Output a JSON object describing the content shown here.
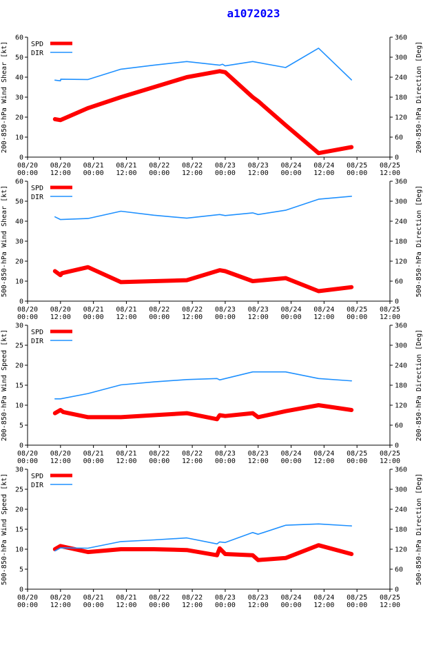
{
  "title": "a1072023",
  "colors": {
    "spd": "#ff0000",
    "dir": "#1e90ff",
    "axis": "#000000",
    "title": "#0000ff"
  },
  "x_tick_labels": [
    [
      "08/20",
      "00:00"
    ],
    [
      "08/20",
      "12:00"
    ],
    [
      "08/21",
      "00:00"
    ],
    [
      "08/21",
      "12:00"
    ],
    [
      "08/22",
      "00:00"
    ],
    [
      "08/22",
      "12:00"
    ],
    [
      "08/23",
      "00:00"
    ],
    [
      "08/23",
      "12:00"
    ],
    [
      "08/24",
      "00:00"
    ],
    [
      "08/24",
      "12:00"
    ],
    [
      "08/25",
      "00:00"
    ],
    [
      "08/25",
      "12:00"
    ]
  ],
  "chart_data": [
    {
      "type": "line",
      "ylabel": "200-850-hPa Wind Shear [kt]",
      "y2label": "200-850-hPa Direction [Deg]",
      "xlim": [
        0,
        132
      ],
      "ylim": [
        0,
        60
      ],
      "y2lim": [
        0,
        360
      ],
      "yticks": [
        "0",
        "10",
        "20",
        "30",
        "40",
        "50",
        "60"
      ],
      "y2ticks": [
        "0",
        "60",
        "120",
        "180",
        "240",
        "300",
        "360"
      ],
      "legend": [
        "SPD",
        "DIR"
      ],
      "series": [
        {
          "name": "SPD",
          "axis": "left",
          "x": [
            10,
            12,
            22,
            34,
            46,
            58,
            70,
            72,
            82,
            84,
            94,
            106,
            118
          ],
          "y": [
            19,
            18.5,
            24.5,
            30,
            35,
            40,
            43,
            42.5,
            30,
            28,
            16,
            2,
            5
          ]
        },
        {
          "name": "DIR",
          "axis": "right",
          "x": [
            10,
            12,
            12.1,
            22,
            34,
            46,
            58,
            70,
            71,
            72,
            82,
            94,
            106,
            118
          ],
          "y": [
            231,
            229,
            234,
            233,
            264,
            276,
            287,
            276,
            279,
            274,
            287,
            269,
            327,
            232
          ]
        }
      ]
    },
    {
      "type": "line",
      "ylabel": "500-850-hPa Wind Shear [kt]",
      "y2label": "500-850-hPa Direction [Deg]",
      "xlim": [
        0,
        132
      ],
      "ylim": [
        0,
        60
      ],
      "y2lim": [
        0,
        360
      ],
      "yticks": [
        "0",
        "10",
        "20",
        "30",
        "40",
        "50",
        "60"
      ],
      "y2ticks": [
        "0",
        "60",
        "120",
        "180",
        "240",
        "300",
        "360"
      ],
      "legend": [
        "SPD",
        "DIR"
      ],
      "series": [
        {
          "name": "SPD",
          "axis": "left",
          "x": [
            10,
            12,
            12.5,
            22,
            34,
            46,
            58,
            70,
            72,
            82,
            94,
            106,
            118
          ],
          "y": [
            15,
            13,
            14,
            17,
            9.5,
            10,
            10.5,
            15.5,
            15,
            10,
            11.5,
            5,
            7
          ]
        },
        {
          "name": "DIR",
          "axis": "right",
          "x": [
            10,
            12,
            22,
            34,
            46,
            58,
            70,
            72,
            82,
            84,
            94,
            106,
            118
          ],
          "y": [
            253,
            245,
            248,
            270,
            258,
            249,
            260,
            257,
            265,
            260,
            273,
            306,
            315
          ]
        }
      ]
    },
    {
      "type": "line",
      "ylabel": "200-850-hPa Wind Speed [kt]",
      "y2label": "200-850-hPa Direction [Deg]",
      "xlim": [
        0,
        132
      ],
      "ylim": [
        0,
        30
      ],
      "y2lim": [
        0,
        360
      ],
      "yticks": [
        "0",
        "5",
        "10",
        "15",
        "20",
        "25",
        "30"
      ],
      "y2ticks": [
        "0",
        "60",
        "120",
        "180",
        "240",
        "300",
        "360"
      ],
      "legend": [
        "SPD",
        "DIR"
      ],
      "series": [
        {
          "name": "SPD",
          "axis": "left",
          "x": [
            10,
            12,
            13,
            22,
            34,
            46,
            58,
            69,
            70,
            72,
            82,
            84,
            94,
            106,
            118
          ],
          "y": [
            8,
            8.8,
            8.3,
            7,
            7,
            7.5,
            8,
            6.5,
            7.5,
            7.3,
            8,
            7,
            8.5,
            10,
            8.8
          ]
        },
        {
          "name": "DIR",
          "axis": "right",
          "x": [
            10,
            12,
            22,
            34,
            46,
            58,
            69,
            70,
            82,
            94,
            106,
            118
          ],
          "y": [
            139,
            139,
            155,
            181,
            190,
            197,
            200,
            196,
            220,
            220,
            200,
            193
          ]
        }
      ]
    },
    {
      "type": "line",
      "ylabel": "500-850-hPa Wind Speed [kt]",
      "y2label": "500-850-hPa Direction [Deg]",
      "xlim": [
        0,
        132
      ],
      "ylim": [
        0,
        30
      ],
      "y2lim": [
        0,
        360
      ],
      "yticks": [
        "0",
        "5",
        "10",
        "15",
        "20",
        "25",
        "30"
      ],
      "y2ticks": [
        "0",
        "60",
        "120",
        "180",
        "240",
        "300",
        "360"
      ],
      "legend": [
        "SPD",
        "DIR"
      ],
      "series": [
        {
          "name": "SPD",
          "axis": "left",
          "x": [
            10,
            12,
            22,
            34,
            46,
            58,
            69,
            70,
            72,
            82,
            84,
            94,
            106,
            118
          ],
          "y": [
            10,
            10.8,
            9.3,
            10,
            10,
            9.8,
            8.5,
            10.2,
            8.8,
            8.5,
            7.3,
            7.8,
            11,
            8.8
          ]
        },
        {
          "name": "DIR",
          "axis": "right",
          "x": [
            10,
            12,
            22,
            34,
            46,
            58,
            69,
            70,
            72,
            82,
            84,
            94,
            106,
            118
          ],
          "y": [
            115,
            124,
            123,
            143,
            148,
            154,
            136,
            142,
            140,
            170,
            165,
            192,
            196,
            190
          ]
        }
      ]
    }
  ]
}
